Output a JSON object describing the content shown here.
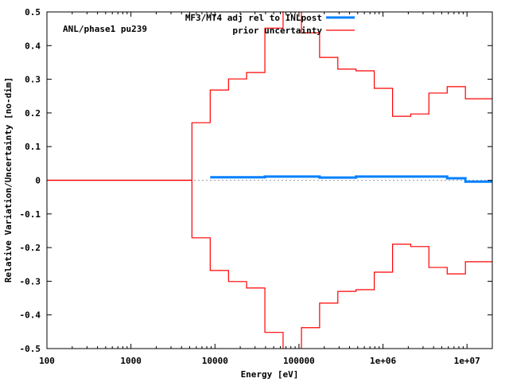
{
  "chart_data": {
    "type": "line",
    "step": true,
    "annotation": "ANL/phase1 pu239",
    "xlabel": "Energy [eV]",
    "ylabel": "Relative Variation/Uncertainty [no-dim]",
    "xscale": "log",
    "xlim": [
      100,
      20000000
    ],
    "ylim": [
      -0.5,
      0.5
    ],
    "grid": false,
    "legend_position": "top-right",
    "x_ticks": [
      {
        "value": 100,
        "label": "100"
      },
      {
        "value": 1000,
        "label": "1000"
      },
      {
        "value": 10000,
        "label": "10000"
      },
      {
        "value": 100000,
        "label": "100000"
      },
      {
        "value": 1000000,
        "label": "1e+06"
      },
      {
        "value": 10000000,
        "label": "1e+07"
      }
    ],
    "y_ticks": [
      {
        "value": 0.5,
        "label": "0.5"
      },
      {
        "value": 0.4,
        "label": "0.4"
      },
      {
        "value": 0.3,
        "label": "0.3"
      },
      {
        "value": 0.2,
        "label": "0.2"
      },
      {
        "value": 0.1,
        "label": "0.1"
      },
      {
        "value": 0,
        "label": "0"
      },
      {
        "value": -0.1,
        "label": "-0.1"
      },
      {
        "value": -0.2,
        "label": "-0.2"
      },
      {
        "value": -0.3,
        "label": "-0.3"
      },
      {
        "value": -0.4,
        "label": "-0.4"
      },
      {
        "value": -0.5,
        "label": "-0.5"
      }
    ],
    "series": [
      {
        "name": "MF3/MT4 adj rel to INLpost",
        "color": "#0080ff",
        "edges": [
          8780,
          14500,
          23800,
          39300,
          64700,
          107000,
          176000,
          290000,
          478000,
          787000,
          1300000,
          2140000,
          3520000,
          5810000,
          9570000,
          20000000
        ],
        "values": [
          0.009,
          0.009,
          0.009,
          0.011,
          0.011,
          0.011,
          0.008,
          0.008,
          0.011,
          0.011,
          0.011,
          0.011,
          0.011,
          0.006,
          -0.004
        ]
      },
      {
        "name": "prior uncertainty",
        "color": "#ff0000",
        "symmetric": true,
        "edges": [
          100,
          5320,
          8780,
          14500,
          23800,
          39300,
          64700,
          107000,
          176000,
          290000,
          478000,
          787000,
          1300000,
          2140000,
          3520000,
          5810000,
          9570000,
          20000000
        ],
        "values": [
          0,
          0.171,
          0.268,
          0.301,
          0.32,
          0.452,
          0.6,
          0.438,
          0.365,
          0.33,
          0.325,
          0.273,
          0.19,
          0.197,
          0.259,
          0.278,
          0.242
        ]
      }
    ]
  }
}
